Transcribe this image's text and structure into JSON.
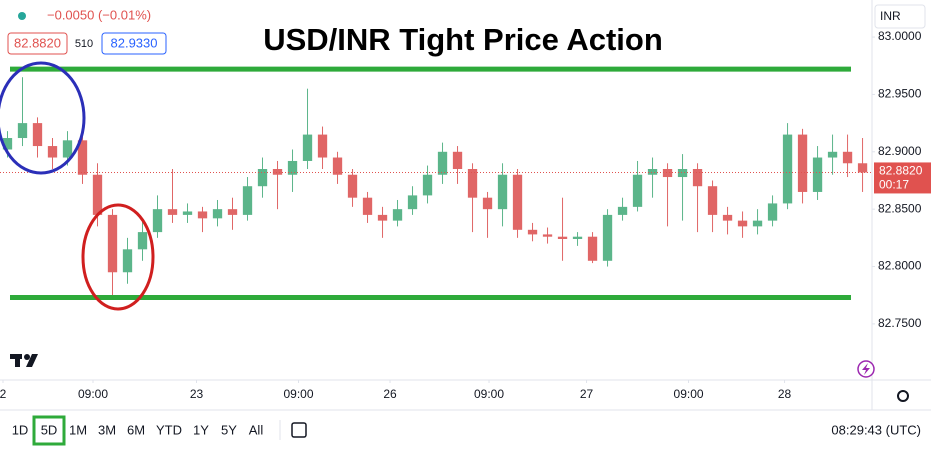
{
  "header": {
    "change": "−0.0050 (−0.01%)",
    "bid": "82.8820",
    "spread": "510",
    "ask": "82.9330"
  },
  "toolbar": {
    "ranges": [
      "1D",
      "5D",
      "1M",
      "3M",
      "6M",
      "YTD",
      "1Y",
      "5Y",
      "All"
    ],
    "clock": "08:29:43 (UTC)"
  },
  "chart_data": {
    "type": "candlestick",
    "title": "USD/INR Tight Price Action",
    "currency": "INR",
    "up_color": "#5bb58a",
    "down_color": "#e06666",
    "grid": false,
    "open": [
      82.902,
      82.912,
      82.925,
      82.905,
      82.895,
      82.91,
      82.88,
      82.845,
      82.795,
      82.815,
      82.83,
      82.85,
      82.845,
      82.848,
      82.842,
      82.85,
      82.845,
      82.87,
      82.885,
      82.88,
      82.892,
      82.915,
      82.895,
      82.88,
      82.86,
      82.845,
      82.84,
      82.85,
      82.862,
      82.88,
      82.9,
      82.885,
      82.86,
      82.85,
      82.88,
      82.832,
      82.828,
      82.826,
      82.824,
      82.826,
      82.805,
      82.845,
      82.852,
      82.88,
      82.885,
      82.878,
      82.885,
      82.87,
      82.845,
      82.84,
      82.835,
      82.84,
      82.855,
      82.915,
      82.865,
      82.895,
      82.9,
      82.89
    ],
    "high": [
      82.918,
      82.965,
      82.93,
      82.912,
      82.918,
      82.915,
      82.89,
      82.85,
      82.825,
      82.84,
      82.862,
      82.885,
      82.855,
      82.852,
      82.858,
      82.86,
      82.878,
      82.895,
      82.892,
      82.902,
      82.955,
      82.922,
      82.9,
      82.885,
      82.865,
      82.852,
      82.858,
      82.87,
      82.888,
      82.908,
      82.905,
      82.89,
      82.865,
      82.89,
      82.885,
      82.838,
      82.834,
      82.86,
      82.83,
      82.83,
      82.85,
      82.86,
      82.892,
      82.895,
      82.89,
      82.898,
      82.89,
      82.875,
      82.852,
      82.848,
      82.85,
      82.862,
      82.925,
      82.92,
      82.905,
      82.915,
      82.915,
      82.912
    ],
    "low": [
      82.895,
      82.905,
      82.895,
      82.885,
      82.888,
      82.872,
      82.835,
      82.775,
      82.785,
      82.805,
      82.825,
      82.838,
      82.838,
      82.83,
      82.835,
      82.832,
      82.84,
      82.86,
      82.85,
      82.865,
      82.885,
      82.885,
      82.872,
      82.852,
      82.838,
      82.825,
      82.835,
      82.845,
      82.855,
      82.872,
      82.872,
      82.83,
      82.825,
      82.835,
      82.825,
      82.822,
      82.82,
      82.805,
      82.818,
      82.803,
      82.8,
      82.84,
      82.848,
      82.86,
      82.835,
      82.84,
      82.83,
      82.83,
      82.828,
      82.825,
      82.828,
      82.835,
      82.85,
      82.855,
      82.858,
      82.88,
      82.878,
      82.865
    ],
    "close": [
      82.912,
      82.925,
      82.905,
      82.895,
      82.91,
      82.88,
      82.845,
      82.795,
      82.815,
      82.83,
      82.85,
      82.845,
      82.848,
      82.842,
      82.85,
      82.845,
      82.87,
      82.885,
      82.88,
      82.892,
      82.915,
      82.895,
      82.88,
      82.86,
      82.845,
      82.84,
      82.85,
      82.862,
      82.88,
      82.9,
      82.885,
      82.86,
      82.85,
      82.88,
      82.832,
      82.828,
      82.826,
      82.824,
      82.826,
      82.805,
      82.845,
      82.852,
      82.88,
      82.885,
      82.878,
      82.885,
      82.87,
      82.845,
      82.84,
      82.835,
      82.84,
      82.855,
      82.915,
      82.865,
      82.895,
      82.9,
      82.89,
      82.882
    ],
    "ylim": [
      82.7011,
      83.0323
    ],
    "yticks": [
      {
        "value": 83,
        "label": "83.0000"
      },
      {
        "value": 82.95,
        "label": "82.9500"
      },
      {
        "value": 82.9,
        "label": "82.9000"
      },
      {
        "value": 82.85,
        "label": "82.8500"
      },
      {
        "value": 82.8,
        "label": "82.8000"
      },
      {
        "value": 82.75,
        "label": "82.7500"
      }
    ],
    "xlim": [
      0,
      58.13
    ],
    "xticks": [
      {
        "value": 0.2,
        "label": "2"
      },
      {
        "value": 6.2,
        "label": "09:00"
      },
      {
        "value": 13.1,
        "label": "23"
      },
      {
        "value": 19.9,
        "label": "09:00"
      },
      {
        "value": 26,
        "label": "26"
      },
      {
        "value": 32.6,
        "label": "09:00"
      },
      {
        "value": 39.1,
        "label": "27"
      },
      {
        "value": 45.9,
        "label": "09:00"
      },
      {
        "value": 52.3,
        "label": "28"
      }
    ],
    "levels": [
      {
        "value": 82.972,
        "color": "#2eaa3a"
      },
      {
        "value": 82.773,
        "color": "#2eaa3a"
      }
    ],
    "last_price": {
      "value": 82.882,
      "label": "82.8820",
      "color": "#e0524f"
    },
    "countdown": "00:17"
  }
}
